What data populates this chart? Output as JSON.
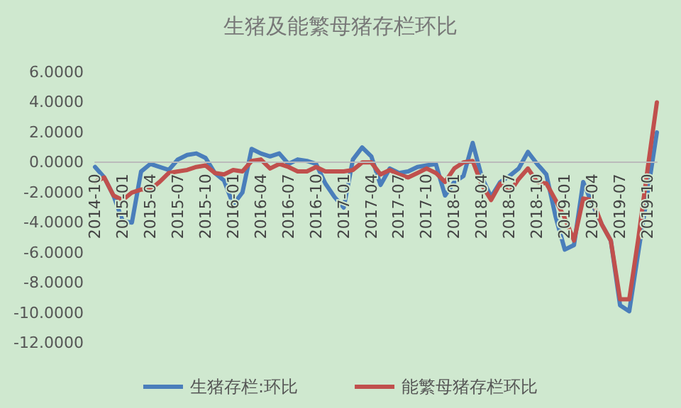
{
  "chart_data": {
    "type": "line",
    "title": "生猪及能繁母猪存栏环比",
    "categories": [
      "2014-10",
      null,
      null,
      "2015-01",
      null,
      null,
      "2015-04",
      null,
      null,
      "2015-07",
      null,
      null,
      "2015-10",
      null,
      null,
      "2016-01",
      null,
      null,
      "2016-04",
      null,
      null,
      "2016-07",
      null,
      null,
      "2016-10",
      null,
      null,
      "2017-01",
      null,
      null,
      "2017-04",
      null,
      null,
      "2017-07",
      null,
      null,
      "2017-10",
      null,
      null,
      "2018-01",
      null,
      null,
      "2018-04",
      null,
      null,
      "2018-07",
      null,
      null,
      "2018-10",
      null,
      null,
      "2019-01",
      null,
      null,
      "2019-04",
      null,
      null,
      "2019-07",
      null,
      null,
      "2019-10",
      null
    ],
    "series": [
      {
        "name": "生猪存栏:环比",
        "color": "#4a7ebb",
        "values": [
          -0.3,
          -1.0,
          -2.2,
          -3.9,
          -4.0,
          -0.6,
          -0.1,
          -0.3,
          -0.5,
          0.2,
          0.5,
          0.6,
          0.3,
          -0.7,
          -1.2,
          -2.8,
          -2.0,
          0.9,
          0.6,
          0.4,
          0.6,
          -0.1,
          0.2,
          0.1,
          -0.1,
          -1.4,
          -2.3,
          -3.0,
          0.2,
          1.0,
          0.4,
          -1.5,
          -0.4,
          -0.7,
          -0.6,
          -0.3,
          -0.2,
          -0.1,
          -2.2,
          -1.3,
          -0.9,
          1.3,
          -1.0,
          -2.3,
          -1.3,
          -0.9,
          -0.4,
          0.7,
          -0.1,
          -0.8,
          -3.6,
          -5.8,
          -5.5,
          -1.3,
          -2.8,
          -4.1,
          -5.2,
          -9.5,
          -9.9,
          -5.9,
          -2.0,
          2.0
        ]
      },
      {
        "name": "能繁母猪存栏环比",
        "color": "#c0504d",
        "values": [
          -1.3,
          -1.0,
          -2.2,
          -2.5,
          -2.0,
          -1.8,
          -1.8,
          -1.3,
          -0.7,
          -0.6,
          -0.5,
          -0.3,
          -0.2,
          -0.7,
          -0.8,
          -0.5,
          -0.6,
          0.1,
          0.2,
          -0.4,
          -0.1,
          -0.3,
          -0.6,
          -0.6,
          -0.3,
          -0.6,
          -0.6,
          -0.6,
          -0.5,
          0.0,
          0.0,
          -0.8,
          -0.5,
          -0.8,
          -1.0,
          -0.7,
          -0.4,
          -0.7,
          -1.3,
          -0.4,
          0.0,
          0.1,
          -1.5,
          -2.5,
          -1.4,
          -2.0,
          -1.1,
          -0.4,
          -1.3,
          -1.4,
          -2.5,
          -3.7,
          -5.2,
          -2.4,
          -2.5,
          -4.1,
          -5.2,
          -9.1,
          -9.1,
          -5.0,
          -0.4,
          4.0
        ]
      }
    ],
    "ylim": [
      -12,
      6
    ],
    "yticks": [
      {
        "value": -12,
        "label": "-12.0000"
      },
      {
        "value": -10,
        "label": "-10.0000"
      },
      {
        "value": -8,
        "label": "-8.0000"
      },
      {
        "value": -6,
        "label": "-6.0000"
      },
      {
        "value": -4,
        "label": "-4.0000"
      },
      {
        "value": -2,
        "label": "-2.0000"
      },
      {
        "value": 0,
        "label": "0.0000"
      },
      {
        "value": 2,
        "label": "2.0000"
      },
      {
        "value": 4,
        "label": "4.0000"
      },
      {
        "value": 6,
        "label": "6.0000"
      }
    ],
    "legend": "bottom",
    "marker": "none",
    "line_style": "solid"
  }
}
